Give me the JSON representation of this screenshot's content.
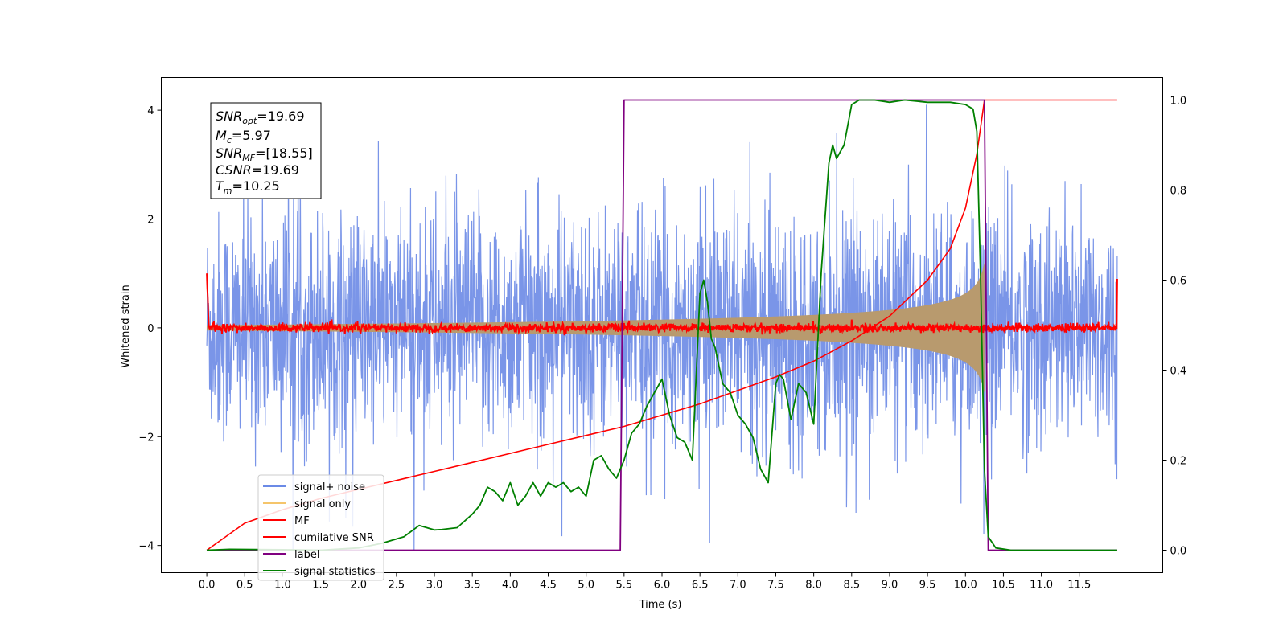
{
  "chart_data": {
    "type": "line",
    "xlabel": "Time (s)",
    "ylabel_left": "Whitened strain",
    "xlim": [
      -0.6,
      12.6
    ],
    "ylim_left": [
      -4.5,
      4.6
    ],
    "ylim_right": [
      -0.05,
      1.05
    ],
    "x_ticks": [
      "0.0",
      "0.5",
      "1.0",
      "1.5",
      "2.0",
      "2.5",
      "3.0",
      "3.5",
      "4.0",
      "4.5",
      "5.0",
      "5.5",
      "6.0",
      "6.5",
      "7.0",
      "7.5",
      "8.0",
      "8.5",
      "9.0",
      "9.5",
      "10.0",
      "10.5",
      "11.0",
      "11.5"
    ],
    "y_ticks_left": [
      "−4",
      "−2",
      "0",
      "2",
      "4"
    ],
    "y_ticks_right": [
      "0.0",
      "0.2",
      "0.4",
      "0.6",
      "0.8",
      "1.0"
    ],
    "info_box": {
      "snr_opt": {
        "base": "SNR",
        "sub": "opt",
        "value": "=19.69"
      },
      "mc": {
        "base": "M",
        "sub": "c",
        "value": "=5.97"
      },
      "snr_mf": {
        "base": "SNR",
        "sub": "MF",
        "value": "=[18.55]"
      },
      "csnr": {
        "base": "CSNR",
        "sub": "",
        "value": "=19.69"
      },
      "tm": {
        "base": "T",
        "sub": "m",
        "value": "=10.25"
      }
    },
    "legend_position": "lower-left",
    "series": [
      {
        "name": "signal+ noise",
        "color": "#6b8ae6",
        "axis": "left",
        "description": "noise band",
        "t_range": [
          0.0,
          12.0
        ],
        "std": 1.05,
        "peak": 4.1
      },
      {
        "name": "signal only",
        "color": "#f5c56b",
        "axis": "left",
        "description": "chirp envelope",
        "t_range": [
          0.0,
          10.25
        ],
        "amp_start": 0.05,
        "amp_end": 1.2
      },
      {
        "name": "MF",
        "color": "#ff0000",
        "axis": "left",
        "description": "matched filter",
        "t_range": [
          0.0,
          12.0
        ],
        "level": 0.0,
        "start": 1.0,
        "end": 0.9
      },
      {
        "name": "cumilative SNR",
        "color": "#ff0000",
        "axis": "right",
        "t": [
          0.0,
          0.5,
          1.0,
          1.5,
          2.0,
          2.5,
          3.0,
          3.5,
          4.0,
          4.5,
          5.0,
          5.5,
          6.0,
          6.5,
          7.0,
          7.5,
          8.0,
          8.5,
          9.0,
          9.5,
          9.8,
          10.0,
          10.15,
          10.25,
          12.0
        ],
        "values": [
          0.0,
          0.06,
          0.09,
          0.115,
          0.135,
          0.155,
          0.175,
          0.195,
          0.215,
          0.235,
          0.255,
          0.275,
          0.3,
          0.325,
          0.355,
          0.385,
          0.42,
          0.465,
          0.52,
          0.6,
          0.67,
          0.76,
          0.88,
          1.0,
          1.0
        ]
      },
      {
        "name": "label",
        "color": "#800080",
        "axis": "right",
        "t": [
          0.0,
          5.45,
          5.5,
          10.25,
          10.3,
          12.0
        ],
        "values": [
          0.0,
          0.0,
          1.0,
          1.0,
          0.0,
          0.0
        ]
      },
      {
        "name": "signal statistics",
        "color": "#008000",
        "axis": "right",
        "t": [
          0.0,
          0.3,
          1.0,
          1.5,
          2.0,
          2.3,
          2.6,
          2.8,
          2.9,
          3.0,
          3.1,
          3.3,
          3.5,
          3.6,
          3.7,
          3.8,
          3.9,
          4.0,
          4.1,
          4.2,
          4.3,
          4.4,
          4.5,
          4.6,
          4.7,
          4.8,
          4.9,
          5.0,
          5.1,
          5.2,
          5.3,
          5.4,
          5.5,
          5.6,
          5.7,
          5.8,
          5.9,
          6.0,
          6.1,
          6.2,
          6.3,
          6.4,
          6.5,
          6.55,
          6.6,
          6.65,
          6.7,
          6.8,
          6.9,
          7.0,
          7.1,
          7.2,
          7.3,
          7.4,
          7.5,
          7.55,
          7.6,
          7.7,
          7.8,
          7.9,
          8.0,
          8.1,
          8.2,
          8.25,
          8.3,
          8.4,
          8.5,
          8.6,
          8.8,
          9.0,
          9.2,
          9.5,
          9.8,
          10.0,
          10.1,
          10.15,
          10.2,
          10.25,
          10.3,
          10.4,
          10.6,
          11.0,
          12.0
        ],
        "values": [
          0.0,
          0.002,
          0.001,
          0.0,
          0.005,
          0.015,
          0.03,
          0.055,
          0.05,
          0.045,
          0.046,
          0.05,
          0.08,
          0.1,
          0.14,
          0.13,
          0.11,
          0.15,
          0.1,
          0.12,
          0.15,
          0.12,
          0.15,
          0.14,
          0.15,
          0.13,
          0.14,
          0.12,
          0.2,
          0.21,
          0.18,
          0.16,
          0.2,
          0.26,
          0.28,
          0.32,
          0.35,
          0.38,
          0.3,
          0.25,
          0.24,
          0.2,
          0.57,
          0.6,
          0.55,
          0.47,
          0.45,
          0.37,
          0.35,
          0.3,
          0.28,
          0.25,
          0.18,
          0.15,
          0.37,
          0.39,
          0.38,
          0.29,
          0.37,
          0.35,
          0.28,
          0.62,
          0.86,
          0.9,
          0.87,
          0.9,
          0.99,
          1.0,
          1.0,
          0.995,
          1.0,
          0.995,
          0.995,
          0.99,
          0.98,
          0.93,
          0.6,
          0.18,
          0.03,
          0.005,
          0.0,
          0.0,
          0.0
        ]
      }
    ]
  }
}
